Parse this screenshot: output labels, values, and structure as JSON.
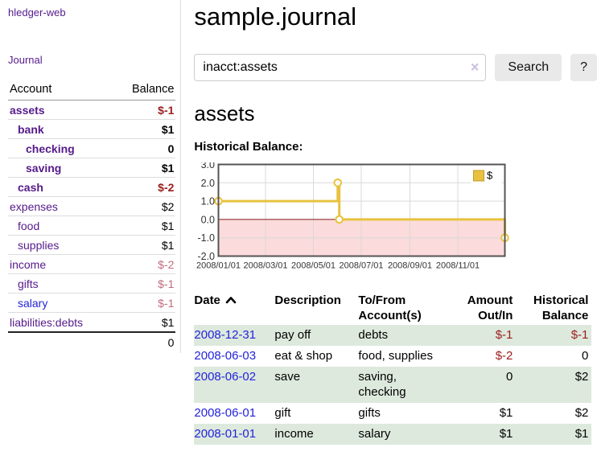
{
  "app": {
    "brand": "hledger-web",
    "nav_journal": "Journal"
  },
  "colors": {
    "link_visited_purple": "#551a8b",
    "link_blue": "#2323dc",
    "negative_strong": "#9b1c1c",
    "negative_muted": "#c16b7b",
    "row_stripe_green": "#dde9dd"
  },
  "sidebar": {
    "header": {
      "account": "Account",
      "balance": "Balance"
    },
    "accounts": [
      {
        "name": "assets",
        "indent": 1,
        "balance": "$-1",
        "bold": true,
        "bal_class": "neg-strong",
        "link": "visited"
      },
      {
        "name": "bank",
        "indent": 2,
        "balance": "$1",
        "bold": true,
        "bal_class": "",
        "link": "visited"
      },
      {
        "name": "checking",
        "indent": 3,
        "balance": "0",
        "bold": true,
        "bal_class": "",
        "link": "visited"
      },
      {
        "name": "saving",
        "indent": 3,
        "balance": "$1",
        "bold": true,
        "bal_class": "",
        "link": "visited"
      },
      {
        "name": "cash",
        "indent": 2,
        "balance": "$-2",
        "bold": true,
        "bal_class": "neg-strong",
        "link": "visited"
      },
      {
        "name": "expenses",
        "indent": 1,
        "balance": "$2",
        "bold": false,
        "bal_class": "",
        "link": "visited"
      },
      {
        "name": "food",
        "indent": 2,
        "balance": "$1",
        "bold": false,
        "bal_class": "",
        "link": "visited"
      },
      {
        "name": "supplies",
        "indent": 2,
        "balance": "$1",
        "bold": false,
        "bal_class": "",
        "link": "visited"
      },
      {
        "name": "income",
        "indent": 1,
        "balance": "$-2",
        "bold": false,
        "bal_class": "neg-muted",
        "link": "visited"
      },
      {
        "name": "gifts",
        "indent": 2,
        "balance": "$-1",
        "bold": false,
        "bal_class": "neg-muted",
        "link": "visited"
      },
      {
        "name": "salary",
        "indent": 2,
        "balance": "$-1",
        "bold": false,
        "bal_class": "neg-muted",
        "link": "new"
      },
      {
        "name": "liabilities:debts",
        "indent": 1,
        "balance": "$1",
        "bold": false,
        "bal_class": "",
        "link": "visited"
      }
    ],
    "total": "0"
  },
  "header": {
    "title": "sample.journal"
  },
  "search": {
    "value": "inacct:assets",
    "clear_icon": "×",
    "button": "Search",
    "help_button": "?"
  },
  "account_page": {
    "title": "assets",
    "chart_label": "Historical Balance:"
  },
  "chart_data": {
    "type": "line",
    "title": "Historical Balance",
    "step": true,
    "x_range": [
      "2008-01-01",
      "2008-12-31"
    ],
    "ylim": [
      -2,
      3
    ],
    "yticks": [
      {
        "label": "3.0",
        "value": 3
      },
      {
        "label": "2.0",
        "value": 2
      },
      {
        "label": "1.0",
        "value": 1
      },
      {
        "label": "0.0",
        "value": 0
      },
      {
        "label": "-1.0",
        "value": -1
      },
      {
        "label": "-2.0",
        "value": -2
      }
    ],
    "xticks": [
      {
        "label": "2008/01/01",
        "date": "2008-01-01"
      },
      {
        "label": "2008/03/01",
        "date": "2008-03-01"
      },
      {
        "label": "2008/05/01",
        "date": "2008-05-01"
      },
      {
        "label": "2008/07/01",
        "date": "2008-07-01"
      },
      {
        "label": "2008/09/01",
        "date": "2008-09-01"
      },
      {
        "label": "2008/11/01",
        "date": "2008-11-01"
      }
    ],
    "series": [
      {
        "name": "$",
        "color": "#e8c23f",
        "points": [
          [
            "2008-01-01",
            1
          ],
          [
            "2008-06-01",
            2
          ],
          [
            "2008-06-03",
            0
          ],
          [
            "2008-12-31",
            -1
          ]
        ]
      }
    ],
    "legend_position": "top-right",
    "grid": true,
    "grid_color": "#d9d9d9",
    "plot_border_color": "#545454",
    "negative_region_color": "#fbdbdb",
    "zero_line_color": "#8b1a1a",
    "legend_swatch_border": "#c19b25"
  },
  "register": {
    "sort": "ascending",
    "columns": [
      {
        "line1": "Date"
      },
      {
        "line1": "Description"
      },
      {
        "line1": "To/From",
        "line2": "Account(s)"
      },
      {
        "line1": "Amount",
        "line2": "Out/In"
      },
      {
        "line1": "Historical",
        "line2": "Balance"
      }
    ],
    "rows": [
      {
        "date": "2008-12-31",
        "description": "pay off",
        "accounts": "debts",
        "amount": "$-1",
        "amount_class": "neg",
        "balance": "$-1",
        "balance_class": "neg"
      },
      {
        "date": "2008-06-03",
        "description": "eat & shop",
        "accounts": "food, supplies",
        "amount": "$-2",
        "amount_class": "neg",
        "balance": "0",
        "balance_class": ""
      },
      {
        "date": "2008-06-02",
        "description": "save",
        "accounts": "saving,\nchecking",
        "amount": "0",
        "amount_class": "",
        "balance": "$2",
        "balance_class": ""
      },
      {
        "date": "2008-06-01",
        "description": "gift",
        "accounts": "gifts",
        "amount": "$1",
        "amount_class": "",
        "balance": "$2",
        "balance_class": ""
      },
      {
        "date": "2008-01-01",
        "description": "income",
        "accounts": "salary",
        "amount": "$1",
        "amount_class": "",
        "balance": "$1",
        "balance_class": ""
      }
    ]
  }
}
